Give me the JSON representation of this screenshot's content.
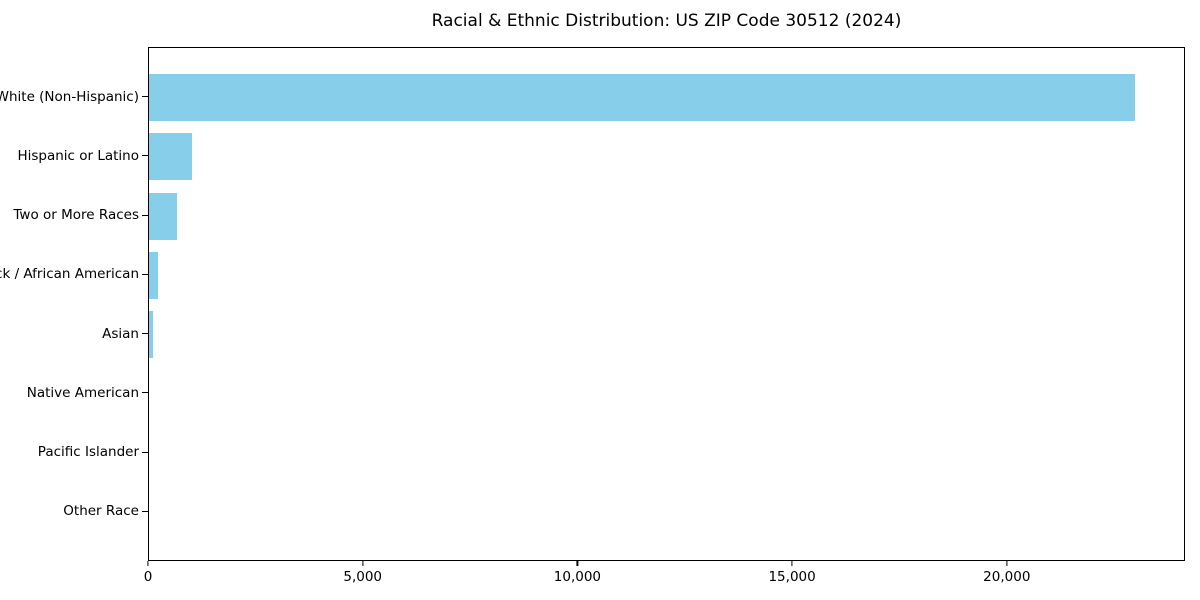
{
  "window": {
    "background_color": "#FFFFFF"
  },
  "chart_data": {
    "type": "bar",
    "orientation": "horizontal",
    "title": "Racial & Ethnic Distribution: US ZIP Code 30512 (2024)",
    "xlabel": "",
    "ylabel": "",
    "categories": [
      "White (Non-Hispanic)",
      "Hispanic or Latino",
      "Two or More Races",
      "Black / African American",
      "Asian",
      "Native American",
      "Pacific Islander",
      "Other Race"
    ],
    "values": [
      23000,
      1000,
      660,
      200,
      95,
      0,
      0,
      0
    ],
    "xlim": [
      0,
      24150
    ],
    "xticks": [
      0,
      5000,
      10000,
      15000,
      20000
    ],
    "xtick_labels": [
      "0",
      "5,000",
      "10,000",
      "15,000",
      "20,000"
    ],
    "grid": false,
    "legend": null,
    "bar_color": "#87CEEB",
    "axis_color": "#000000",
    "text_color": "#000000"
  }
}
